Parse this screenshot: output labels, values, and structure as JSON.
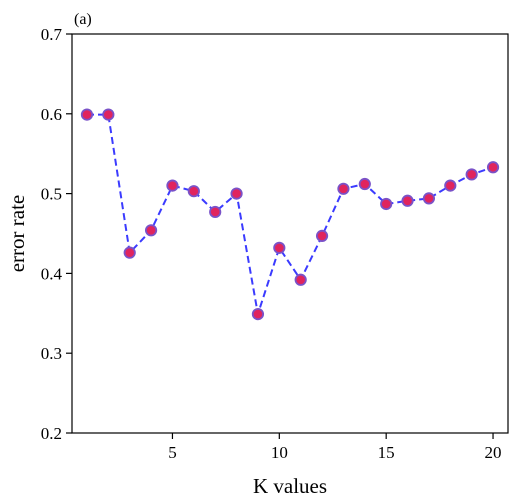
{
  "chart_data": {
    "type": "line",
    "panel_label": "(a)",
    "xlabel": "K values",
    "ylabel": "error rate",
    "xlim": [
      0.3,
      20.7
    ],
    "ylim": [
      0.2,
      0.7
    ],
    "x_ticks": [
      5,
      10,
      15,
      20
    ],
    "y_ticks": [
      0.2,
      0.3,
      0.4,
      0.5,
      0.6,
      0.7
    ],
    "x_tick_labels": [
      "5",
      "10",
      "15",
      "20"
    ],
    "y_tick_labels": [
      "0.2",
      "0.3",
      "0.4",
      "0.5",
      "0.6",
      "0.7"
    ],
    "grid": false,
    "series": [
      {
        "x": [
          1,
          2,
          3,
          4,
          5,
          6,
          7,
          8,
          9,
          10,
          11,
          12,
          13,
          14,
          15,
          16,
          17,
          18,
          19,
          20
        ],
        "values": [
          0.599,
          0.599,
          0.426,
          0.454,
          0.51,
          0.503,
          0.477,
          0.5,
          0.349,
          0.432,
          0.392,
          0.447,
          0.506,
          0.512,
          0.487,
          0.491,
          0.494,
          0.51,
          0.524,
          0.533
        ],
        "line_color": "#3b3bff",
        "line_style": "dashed",
        "marker_color": "#e0245e",
        "marker_edge_color": "#7a52c8"
      }
    ]
  }
}
